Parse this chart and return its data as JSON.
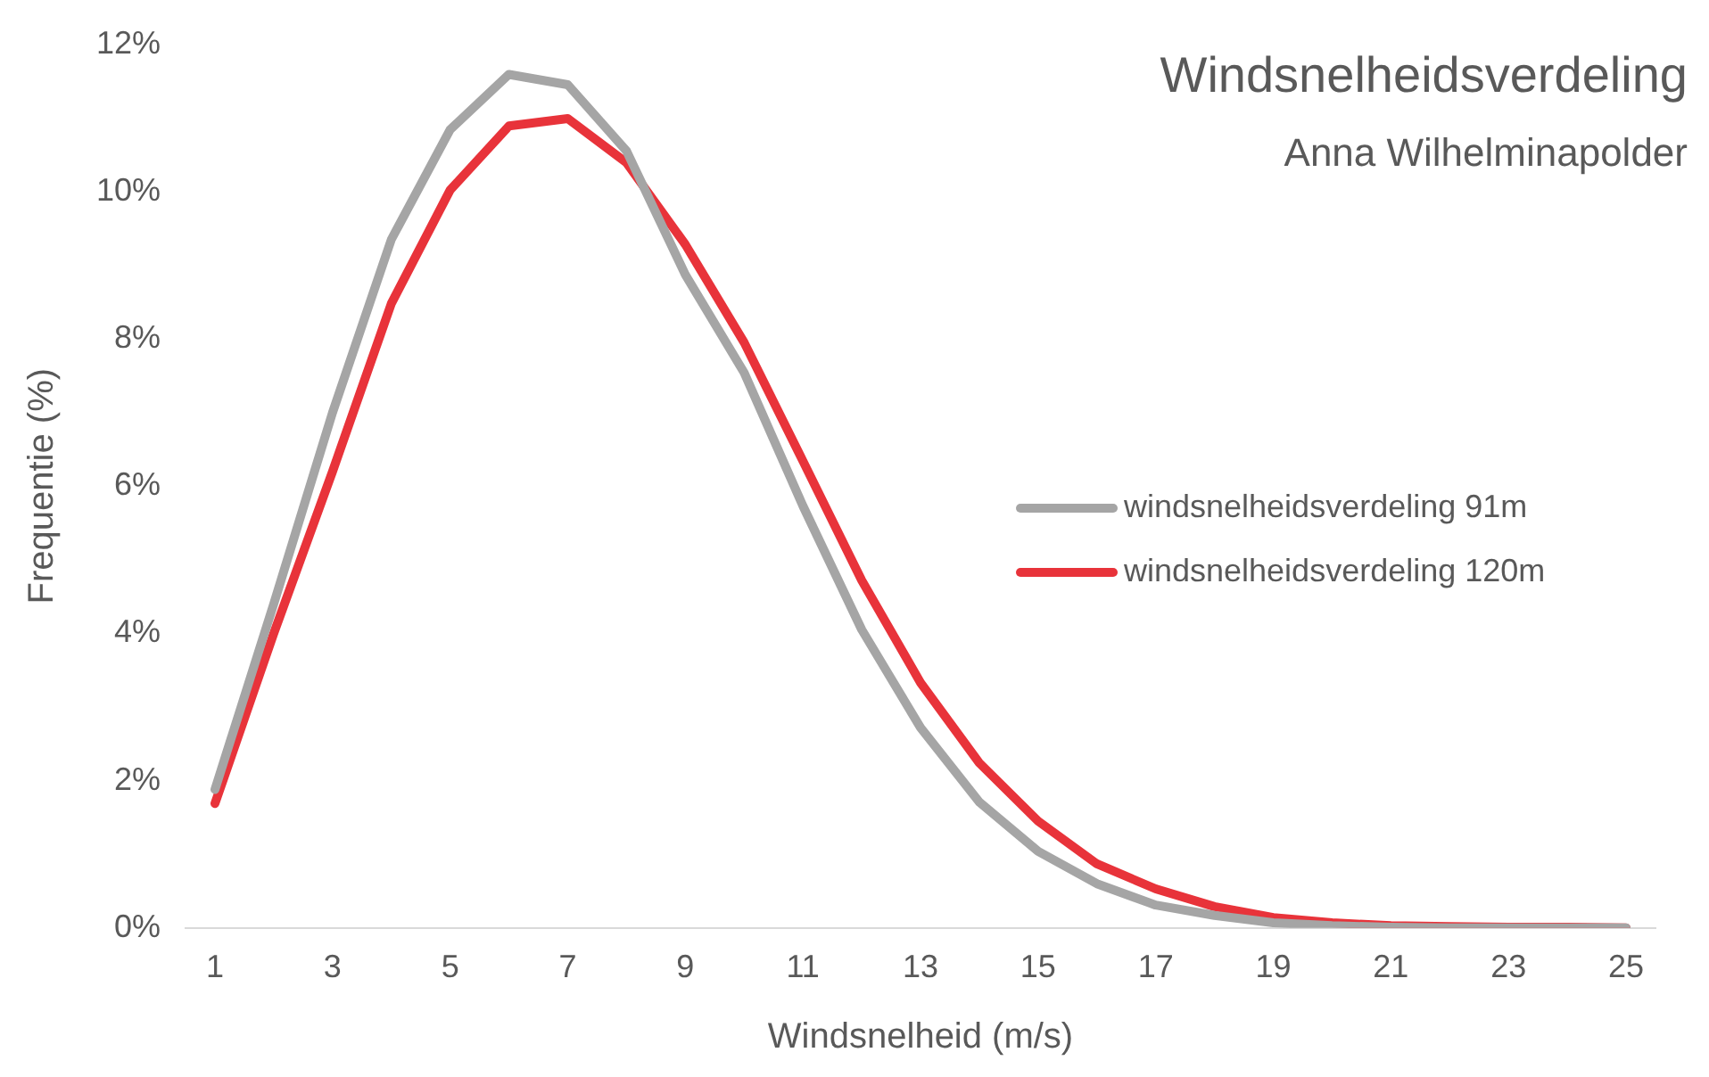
{
  "chart_data": {
    "type": "line",
    "title": "Windsnelheidsverdeling",
    "subtitle": "Anna Wilhelminapolder",
    "xlabel": "Windsnelheid (m/s)",
    "ylabel": "Frequentie (%)",
    "x": [
      1,
      2,
      3,
      4,
      5,
      6,
      7,
      8,
      9,
      10,
      11,
      12,
      13,
      14,
      15,
      16,
      17,
      18,
      19,
      20,
      21,
      22,
      23,
      24,
      25
    ],
    "xlim": [
      0.5,
      25.5
    ],
    "xticks": [
      1,
      3,
      5,
      7,
      9,
      11,
      13,
      15,
      17,
      19,
      21,
      23,
      25
    ],
    "series": [
      {
        "name": "windsnelheidsverdeling 91m",
        "color": "#a5a5a5",
        "values": [
          1.88,
          4.4,
          7.0,
          9.35,
          10.84,
          11.59,
          11.45,
          10.55,
          8.87,
          7.54,
          5.73,
          4.05,
          2.72,
          1.71,
          1.04,
          0.6,
          0.31,
          0.17,
          0.07,
          0.03,
          0.01,
          0,
          0,
          0,
          0
        ]
      },
      {
        "name": "windsnelheidsverdeling 120m",
        "color": "#e8333a",
        "values": [
          1.69,
          4.0,
          6.2,
          8.48,
          10.02,
          10.89,
          10.99,
          10.39,
          9.28,
          7.95,
          6.34,
          4.72,
          3.33,
          2.24,
          1.45,
          0.87,
          0.53,
          0.29,
          0.14,
          0.07,
          0.03,
          0.02,
          0.01,
          0.01,
          0
        ]
      }
    ],
    "ylim": [
      0,
      12
    ],
    "yticks": [
      {
        "value": 0,
        "label": "0%"
      },
      {
        "value": 2,
        "label": "2%"
      },
      {
        "value": 4,
        "label": "4%"
      },
      {
        "value": 6,
        "label": "6%"
      },
      {
        "value": 8,
        "label": "8%"
      },
      {
        "value": 10,
        "label": "10%"
      },
      {
        "value": 12,
        "label": "12%"
      }
    ],
    "grid": false,
    "legend": "right",
    "marker": "none",
    "line_style": "solid"
  }
}
